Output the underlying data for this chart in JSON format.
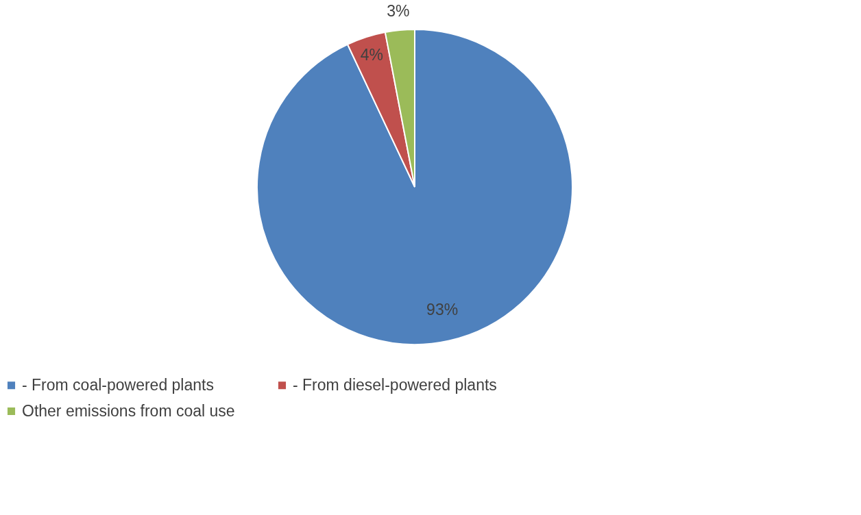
{
  "chart_data": {
    "type": "pie",
    "categories": [
      "-          From coal-powered plants",
      "-          From diesel-powered plants",
      "Other emissions from coal use"
    ],
    "values": [
      93,
      4,
      3
    ],
    "colors": [
      "#4f81bd",
      "#c0504d",
      "#9bbb59"
    ],
    "value_labels": [
      "93%",
      "4%",
      "3%"
    ],
    "legend": "bottom"
  }
}
